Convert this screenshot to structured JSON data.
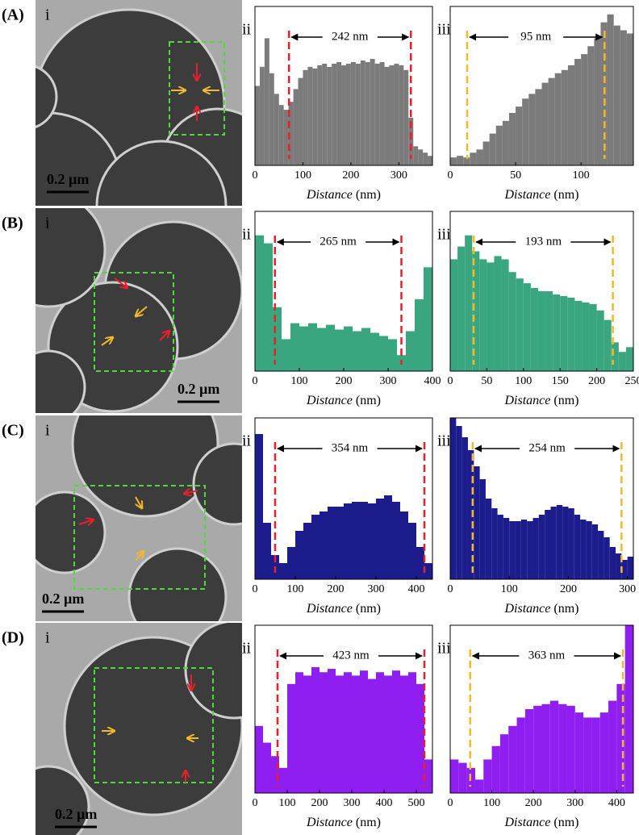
{
  "panels": [
    {
      "label": "(A)",
      "image_label": "i",
      "scale_bar": "0.2 µm"
    },
    {
      "label": "(B)",
      "image_label": "i",
      "scale_bar": "0.2 µm"
    },
    {
      "label": "(C)",
      "image_label": "i",
      "scale_bar": "0.2 µm"
    },
    {
      "label": "(D)",
      "image_label": "i",
      "scale_bar": "0.2 µm"
    }
  ],
  "chart_data": [
    {
      "type": "histogram",
      "panel_label": "ii",
      "xlabel": "Distance",
      "xunit": "(nm)",
      "color": "#7b7b7b",
      "marker_color": "#e8202a",
      "xlim": [
        0,
        370
      ],
      "xticks": [
        0,
        100,
        200,
        300
      ],
      "ylim": [
        0,
        100
      ],
      "markers": [
        71,
        325
      ],
      "annotation": "242 nm",
      "x": [
        0,
        10,
        20,
        30,
        40,
        50,
        60,
        70,
        80,
        90,
        100,
        110,
        120,
        130,
        140,
        150,
        160,
        170,
        180,
        190,
        200,
        210,
        220,
        230,
        240,
        250,
        260,
        270,
        280,
        290,
        300,
        310,
        320,
        330,
        340,
        350,
        360
      ],
      "values": [
        50,
        62,
        80,
        58,
        45,
        38,
        35,
        40,
        48,
        55,
        60,
        62,
        61,
        63,
        64,
        62,
        64,
        65,
        63,
        64,
        65,
        64,
        66,
        65,
        67,
        64,
        65,
        62,
        63,
        64,
        63,
        60,
        30,
        12,
        10,
        8,
        6
      ]
    },
    {
      "type": "histogram",
      "panel_label": "iii",
      "xlabel": "Distance",
      "xunit": "(nm)",
      "color": "#7b7b7b",
      "marker_color": "#f5b829",
      "xlim": [
        0,
        140
      ],
      "xticks": [
        0,
        50,
        100
      ],
      "ylim": [
        0,
        100
      ],
      "markers": [
        13,
        118
      ],
      "annotation": "95 nm",
      "x": [
        0,
        5,
        10,
        15,
        20,
        25,
        30,
        35,
        40,
        45,
        50,
        55,
        60,
        65,
        70,
        75,
        80,
        85,
        90,
        95,
        100,
        105,
        110,
        115,
        120,
        125,
        130,
        135
      ],
      "values": [
        5,
        6,
        5,
        8,
        10,
        15,
        20,
        25,
        28,
        33,
        37,
        42,
        45,
        48,
        52,
        55,
        58,
        60,
        63,
        67,
        70,
        75,
        80,
        90,
        95,
        88,
        85,
        83
      ]
    },
    {
      "type": "histogram",
      "panel_label": "ii",
      "xlabel": "Distance",
      "xunit": "(nm)",
      "color": "#3aa67f",
      "marker_color": "#e8202a",
      "xlim": [
        0,
        400
      ],
      "xticks": [
        0,
        100,
        200,
        300,
        400
      ],
      "ylim": [
        0,
        100
      ],
      "markers": [
        45,
        330
      ],
      "annotation": "265 nm",
      "x": [
        0,
        20,
        40,
        60,
        80,
        100,
        120,
        140,
        160,
        180,
        200,
        220,
        240,
        260,
        280,
        300,
        320,
        340,
        360,
        380
      ],
      "values": [
        85,
        80,
        40,
        20,
        30,
        28,
        30,
        27,
        29,
        26,
        28,
        25,
        27,
        24,
        22,
        20,
        10,
        25,
        45,
        65
      ]
    },
    {
      "type": "histogram",
      "panel_label": "iii",
      "xlabel": "Distance",
      "xunit": "(nm)",
      "color": "#3aa67f",
      "marker_color": "#f5b829",
      "xlim": [
        0,
        250
      ],
      "xticks": [
        0,
        50,
        100,
        150,
        200,
        250
      ],
      "ylim": [
        0,
        100
      ],
      "markers": [
        32,
        222
      ],
      "annotation": "193 nm",
      "x": [
        0,
        10,
        20,
        30,
        40,
        50,
        60,
        70,
        80,
        90,
        100,
        110,
        120,
        130,
        140,
        150,
        160,
        170,
        180,
        190,
        200,
        210,
        220,
        230,
        240
      ],
      "values": [
        70,
        78,
        85,
        75,
        70,
        68,
        72,
        70,
        62,
        58,
        55,
        52,
        50,
        50,
        48,
        47,
        46,
        44,
        43,
        42,
        38,
        32,
        18,
        12,
        15
      ]
    },
    {
      "type": "histogram",
      "panel_label": "ii",
      "xlabel": "Distance",
      "xunit": "(nm)",
      "color": "#1c1c8c",
      "marker_color": "#e8202a",
      "xlim": [
        0,
        440
      ],
      "xticks": [
        0,
        100,
        200,
        300,
        400
      ],
      "ylim": [
        0,
        100
      ],
      "markers": [
        50,
        420
      ],
      "annotation": "354 nm",
      "x": [
        0,
        20,
        40,
        60,
        80,
        100,
        120,
        140,
        160,
        180,
        200,
        220,
        240,
        260,
        280,
        300,
        320,
        340,
        360,
        380,
        400,
        420
      ],
      "values": [
        90,
        35,
        15,
        10,
        20,
        30,
        35,
        40,
        42,
        45,
        45,
        47,
        48,
        48,
        47,
        50,
        52,
        48,
        42,
        35,
        20,
        10
      ]
    },
    {
      "type": "histogram",
      "panel_label": "iii",
      "xlabel": "Distance",
      "xunit": "(nm)",
      "color": "#1c1c8c",
      "marker_color": "#f5b829",
      "xlim": [
        0,
        310
      ],
      "xticks": [
        0,
        100,
        200,
        300
      ],
      "ylim": [
        0,
        100
      ],
      "markers": [
        38,
        290
      ],
      "annotation": "254 nm",
      "x": [
        0,
        10,
        20,
        30,
        40,
        50,
        60,
        70,
        80,
        90,
        100,
        110,
        120,
        130,
        140,
        150,
        160,
        170,
        180,
        190,
        200,
        210,
        220,
        230,
        240,
        250,
        260,
        270,
        280,
        290,
        300
      ],
      "values": [
        100,
        95,
        88,
        80,
        70,
        62,
        50,
        44,
        40,
        38,
        36,
        36,
        37,
        36,
        38,
        40,
        43,
        45,
        46,
        45,
        44,
        40,
        37,
        36,
        34,
        30,
        26,
        20,
        16,
        12,
        14
      ]
    },
    {
      "type": "histogram",
      "panel_label": "ii",
      "xlabel": "Distance",
      "xunit": "(nm)",
      "color": "#8f1ff0",
      "marker_color": "#e8202a",
      "xlim": [
        0,
        550
      ],
      "xticks": [
        0,
        100,
        200,
        300,
        400,
        500
      ],
      "ylim": [
        0,
        100
      ],
      "markers": [
        70,
        525
      ],
      "annotation": "423 nm",
      "x": [
        0,
        25,
        50,
        75,
        100,
        125,
        150,
        175,
        200,
        225,
        250,
        275,
        300,
        325,
        350,
        375,
        400,
        425,
        450,
        475,
        500,
        525
      ],
      "values": [
        40,
        30,
        22,
        15,
        65,
        72,
        70,
        75,
        72,
        74,
        70,
        72,
        70,
        73,
        68,
        72,
        70,
        73,
        70,
        72,
        65,
        20
      ]
    },
    {
      "type": "histogram",
      "panel_label": "iii",
      "xlabel": "Distance",
      "xunit": "(nm)",
      "color": "#8f1ff0",
      "marker_color": "#f5b829",
      "xlim": [
        0,
        440
      ],
      "xticks": [
        0,
        100,
        200,
        300,
        400
      ],
      "ylim": [
        0,
        100
      ],
      "markers": [
        48,
        415
      ],
      "annotation": "363 nm",
      "x": [
        0,
        20,
        40,
        60,
        80,
        100,
        120,
        140,
        160,
        180,
        200,
        220,
        240,
        260,
        280,
        300,
        320,
        340,
        360,
        380,
        400,
        420
      ],
      "values": [
        20,
        18,
        15,
        8,
        20,
        28,
        35,
        40,
        45,
        50,
        52,
        53,
        55,
        53,
        52,
        48,
        45,
        45,
        48,
        55,
        65,
        100
      ]
    }
  ]
}
